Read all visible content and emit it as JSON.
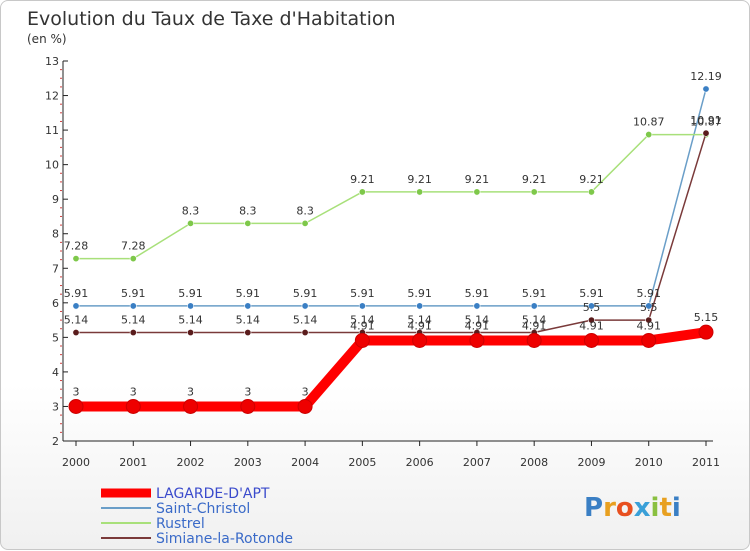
{
  "chart_data": {
    "type": "line",
    "title": "Evolution du Taux de Taxe d'Habitation",
    "subtitle": "(en %)",
    "xlabel": "",
    "ylabel": "",
    "ylim": [
      2,
      13
    ],
    "yticks": [
      "2",
      "3",
      "4",
      "5",
      "6",
      "7",
      "8",
      "9",
      "10",
      "11",
      "12",
      "13"
    ],
    "categories": [
      "2000",
      "2001",
      "2002",
      "2003",
      "2004",
      "2005",
      "2006",
      "2007",
      "2008",
      "2009",
      "2010",
      "2011"
    ],
    "grid": false,
    "legend_position": "bottom-left",
    "series": [
      {
        "name": "Saint-Christol",
        "color": "#6a9ec8",
        "marker_color": "#3a7fc4",
        "values": [
          5.91,
          5.91,
          5.91,
          5.91,
          5.91,
          5.91,
          5.91,
          5.91,
          5.91,
          5.91,
          5.91,
          12.19
        ],
        "labels": [
          "5.91",
          "5.91",
          "5.91",
          "5.91",
          "5.91",
          "5.91",
          "5.91",
          "5.91",
          "5.91",
          "5.91",
          "5.91",
          "12.19"
        ]
      },
      {
        "name": "Rustrel",
        "color": "#a8e07a",
        "marker_color": "#7ec84a",
        "values": [
          7.28,
          7.28,
          8.3,
          8.3,
          8.3,
          9.21,
          9.21,
          9.21,
          9.21,
          9.21,
          10.87,
          10.87
        ],
        "labels": [
          "7.28",
          "7.28",
          "8.3",
          "8.3",
          "8.3",
          "9.21",
          "9.21",
          "9.21",
          "9.21",
          "9.21",
          "10.87",
          "10.87"
        ]
      },
      {
        "name": "Simiane-la-Rotonde",
        "color": "#7a3a3a",
        "marker_color": "#5a1c1c",
        "values": [
          5.14,
          5.14,
          5.14,
          5.14,
          5.14,
          5.14,
          5.14,
          5.14,
          5.14,
          5.5,
          5.5,
          10.91
        ],
        "labels": [
          "5.14",
          "5.14",
          "5.14",
          "5.14",
          "5.14",
          "5.14",
          "5.14",
          "5.14",
          "5.14",
          "5.5",
          "5.5",
          "10.91"
        ]
      },
      {
        "name": "LAGARDE-D'APT",
        "color": "#ff0000",
        "marker_color": "#ee0000",
        "emphasis": true,
        "values": [
          3,
          3,
          3,
          3,
          3,
          4.91,
          4.91,
          4.91,
          4.91,
          4.91,
          4.91,
          5.15
        ],
        "labels": [
          "3",
          "3",
          "3",
          "3",
          "3",
          "4.91",
          "4.91",
          "4.91",
          "4.91",
          "4.91",
          "4.91",
          "5.15"
        ]
      }
    ],
    "legend": [
      "LAGARDE-D'APT",
      "Saint-Christol",
      "Rustrel",
      "Simiane-la-Rotonde"
    ]
  },
  "brand": {
    "logo_text": "Proxiti",
    "letter_colors": [
      "#3a7fc4",
      "#e8a020",
      "#e85020",
      "#3aa0d8",
      "#8ac040",
      "#e8a020",
      "#3a7fc4"
    ]
  }
}
